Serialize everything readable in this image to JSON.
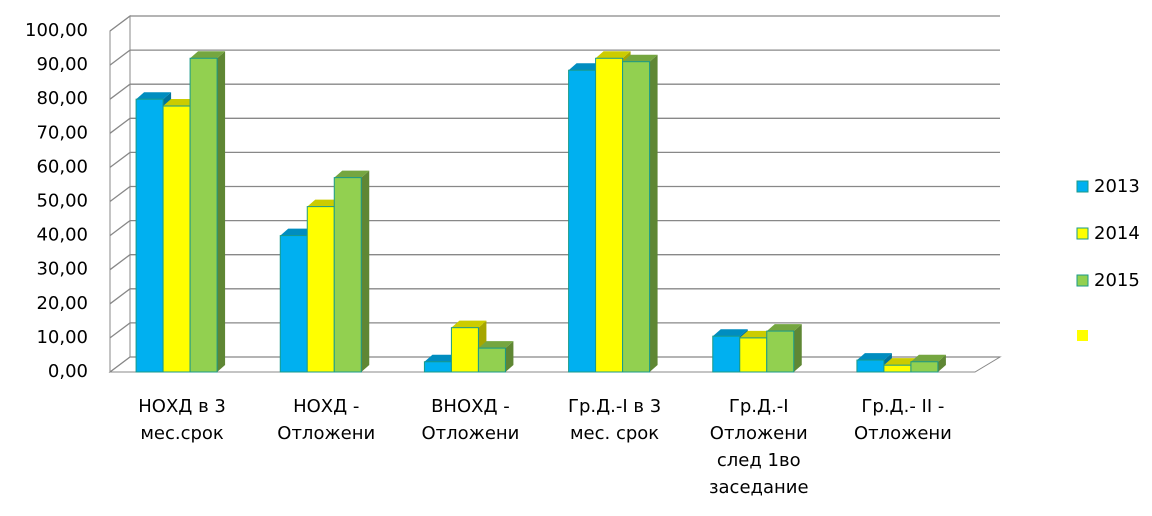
{
  "chart_data": {
    "type": "bar3d",
    "categories": [
      "НОХД в 3 мес.срок",
      "НОХД - Отложени",
      "ВНОХД - Отложени",
      "Гр.Д.-I в 3 мес. срок",
      "Гр.Д.-I Отложени след 1во заседание",
      "Гр.Д.- II - Отложени"
    ],
    "series": [
      {
        "name": "2013",
        "color": "#00b0f0",
        "values": [
          80,
          40,
          3,
          88.5,
          10.5,
          3.5
        ]
      },
      {
        "name": "2014",
        "color": "#ffff00",
        "values": [
          78,
          48.5,
          13,
          92,
          10,
          2
        ]
      },
      {
        "name": "2015",
        "color": "#92d050",
        "values": [
          92,
          57,
          7,
          91,
          12,
          3
        ]
      }
    ],
    "ylim": [
      0,
      100
    ],
    "yticks": [
      {
        "value": 0,
        "label": "0,00"
      },
      {
        "value": 10,
        "label": "10,00"
      },
      {
        "value": 20,
        "label": "20,00"
      },
      {
        "value": 30,
        "label": "30,00"
      },
      {
        "value": 40,
        "label": "40,00"
      },
      {
        "value": 50,
        "label": "50,00"
      },
      {
        "value": 60,
        "label": "60,00"
      },
      {
        "value": 70,
        "label": "70,00"
      },
      {
        "value": 80,
        "label": "80,00"
      },
      {
        "value": 90,
        "label": "90,00"
      },
      {
        "value": 100,
        "label": "100,00"
      }
    ],
    "grid": true,
    "legend": "right"
  }
}
